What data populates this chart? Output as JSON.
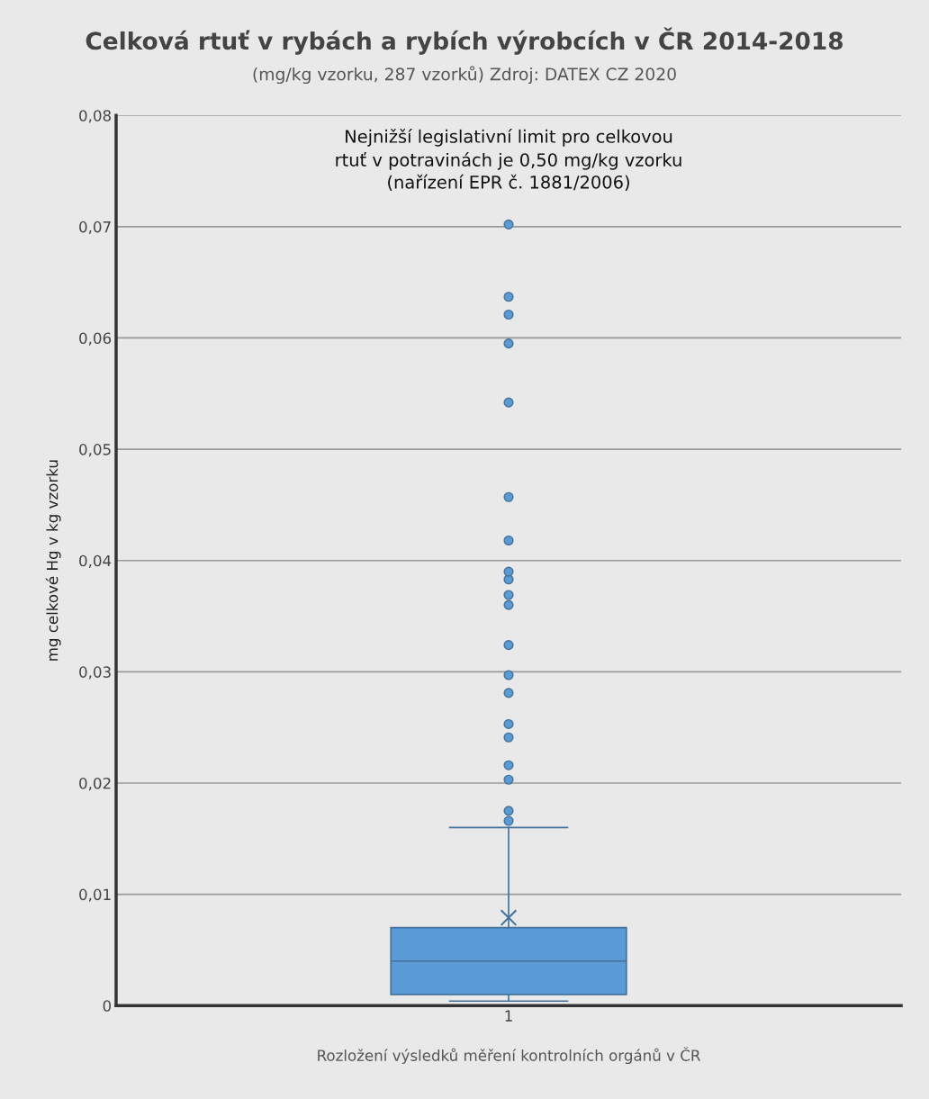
{
  "chart_data": {
    "type": "box",
    "title": "Celková rtuť v rybách a rybích výrobcích v ČR 2014-2018",
    "subtitle": "(mg/kg vzorku, 287 vzorků) Zdroj: DATEX CZ 2020",
    "xlabel": "Rozložení výsledků měření kontrolních orgánů v ČR",
    "ylabel": "mg celkové Hg v kg vzorku",
    "categories": [
      "1"
    ],
    "color": "#5b9bd5",
    "boxes": [
      {
        "low": 0.0004,
        "q1": 0.001,
        "median": 0.004,
        "q3": 0.007,
        "high": 0.016,
        "mean": 0.0079,
        "outliers": [
          0.0166,
          0.0175,
          0.0203,
          0.0216,
          0.0241,
          0.0253,
          0.0281,
          0.0297,
          0.0324,
          0.036,
          0.0369,
          0.0383,
          0.039,
          0.0418,
          0.0457,
          0.0542,
          0.0595,
          0.0621,
          0.0637,
          0.0702
        ]
      }
    ],
    "ylim": [
      0,
      0.08
    ],
    "yticks": [
      {
        "value": 0,
        "label": "0"
      },
      {
        "value": 0.01,
        "label": "0,01"
      },
      {
        "value": 0.02,
        "label": "0,02"
      },
      {
        "value": 0.03,
        "label": "0,03"
      },
      {
        "value": 0.04,
        "label": "0,04"
      },
      {
        "value": 0.05,
        "label": "0,05"
      },
      {
        "value": 0.06,
        "label": "0,06"
      },
      {
        "value": 0.07,
        "label": "0,07"
      },
      {
        "value": 0.08,
        "label": "0,08"
      }
    ],
    "grid": "y",
    "annotations": [
      "Nejnižší legislativní limit pro celkovou\nrtuť v potravinách je 0,50 mg/kg vzorku\n(nařízení EPR č. 1881/2006)"
    ]
  }
}
